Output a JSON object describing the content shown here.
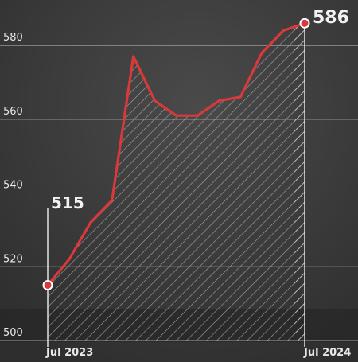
{
  "chart_data": {
    "type": "area",
    "title": "",
    "xlabel": "",
    "ylabel": "",
    "ylim": [
      500,
      588
    ],
    "yticks": [
      500,
      520,
      540,
      560,
      580
    ],
    "x_tick_labels": [
      "Jul 2023",
      "Jul 2024"
    ],
    "x_range": [
      "2023-07",
      "2024-07"
    ],
    "grid": true,
    "series": [
      {
        "x": [
          "2023-07",
          "2023-08",
          "2023-09",
          "2023-10",
          "2023-11",
          "2023-12",
          "2024-01",
          "2024-02",
          "2024-03",
          "2024-04",
          "2024-05",
          "2024-06",
          "2024-07"
        ],
        "values": [
          515,
          522,
          532,
          538,
          577,
          565,
          561,
          561,
          565,
          566,
          578,
          584,
          586
        ]
      }
    ],
    "annotations": [
      {
        "text": "515",
        "x": "2023-07",
        "y": 515
      },
      {
        "text": "586",
        "x": "2024-07",
        "y": 586
      }
    ],
    "colors": {
      "line": "#d9393a",
      "marker_fill": "#d9393a",
      "marker_stroke": "#ffffff",
      "hatch": "#bdbdbd",
      "background": "#3a3a3a"
    }
  }
}
